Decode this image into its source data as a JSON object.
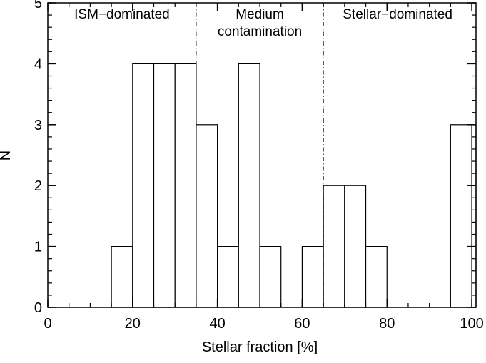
{
  "chart_data": {
    "type": "bar",
    "subtype": "histogram",
    "xlabel": "Stellar fraction [%]",
    "ylabel": "N",
    "xlim": [
      0,
      101
    ],
    "ylim": [
      0,
      5
    ],
    "bin_width": 5,
    "bins": [
      {
        "x0": 15,
        "x1": 20,
        "count": 1
      },
      {
        "x0": 20,
        "x1": 25,
        "count": 4
      },
      {
        "x0": 25,
        "x1": 30,
        "count": 4
      },
      {
        "x0": 30,
        "x1": 35,
        "count": 4
      },
      {
        "x0": 35,
        "x1": 40,
        "count": 3
      },
      {
        "x0": 40,
        "x1": 45,
        "count": 1
      },
      {
        "x0": 45,
        "x1": 50,
        "count": 4
      },
      {
        "x0": 50,
        "x1": 55,
        "count": 1
      },
      {
        "x0": 60,
        "x1": 65,
        "count": 1
      },
      {
        "x0": 65,
        "x1": 70,
        "count": 2
      },
      {
        "x0": 70,
        "x1": 75,
        "count": 2
      },
      {
        "x0": 75,
        "x1": 80,
        "count": 1
      },
      {
        "x0": 95,
        "x1": 100,
        "count": 3
      },
      {
        "x0": 100,
        "x1": 101,
        "count": 3
      }
    ],
    "x_ticks": [
      0,
      20,
      40,
      60,
      80,
      100
    ],
    "y_ticks": [
      0,
      1,
      2,
      3,
      4,
      5
    ],
    "x_minor_step": 5,
    "y_minor_step": 0.2,
    "dividers": [
      35,
      65
    ],
    "regions": [
      {
        "lines": [
          "ISM−dominated"
        ],
        "x": 17.5,
        "y": 4.8
      },
      {
        "lines": [
          "Medium",
          "contamination"
        ],
        "x": 50,
        "y": 4.8
      },
      {
        "lines": [
          "Stellar−dominated"
        ],
        "x": 82.5,
        "y": 4.8
      }
    ],
    "colors": {
      "bar_fill": "#ffffff",
      "bar_stroke": "#000000",
      "axis": "#000000"
    }
  }
}
